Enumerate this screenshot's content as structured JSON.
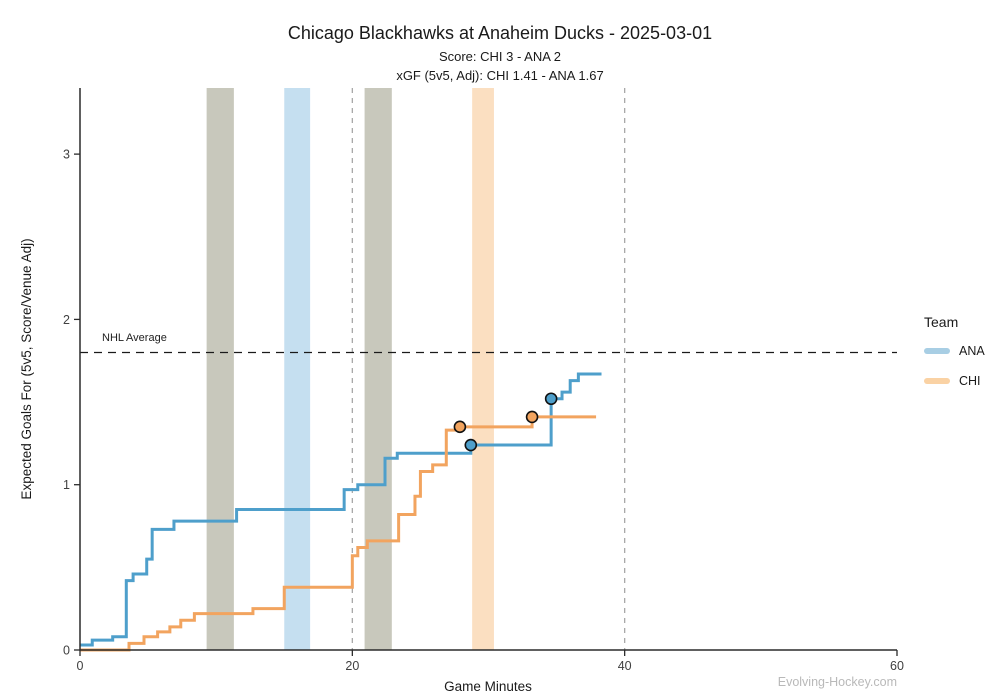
{
  "legend": {
    "title": "Team",
    "items": [
      {
        "label": "ANA",
        "swatch_color": "#A8CEE4"
      },
      {
        "label": "CHI",
        "swatch_color": "#FAD2A4"
      }
    ]
  },
  "watermark": "Evolving-Hockey.com",
  "chart_data": {
    "type": "line",
    "step": true,
    "title": "Chicago Blackhawks at Anaheim Ducks - 2025-03-01",
    "subtitle_score": "Score: CHI 3 - ANA 2",
    "subtitle_xgf": "xGF (5v5, Adj): CHI 1.41 - ANA 1.67",
    "xlabel": "Game Minutes",
    "ylabel": "Expected Goals For (5v5, Score/Venue Adj)",
    "xlim": [
      0,
      60
    ],
    "ylim": [
      0,
      3.4
    ],
    "x_ticks": [
      0,
      20,
      40,
      60
    ],
    "y_ticks": [
      0,
      1,
      2,
      3
    ],
    "grid": false,
    "legend_position": "right",
    "nhl_average": {
      "label": "NHL Average",
      "value": 1.8
    },
    "period_lines": [
      20,
      40
    ],
    "bands": [
      {
        "from": 9.3,
        "to": 11.3,
        "color": "#C8C8BC"
      },
      {
        "from": 15.0,
        "to": 16.9,
        "color": "#C5DFF0"
      },
      {
        "from": 20.9,
        "to": 22.9,
        "color": "#C8C8BC"
      },
      {
        "from": 28.8,
        "to": 30.4,
        "color": "#FBDFC1"
      }
    ],
    "series": [
      {
        "name": "ANA",
        "color": "#4E9FCB",
        "points": [
          [
            0,
            0.03
          ],
          [
            0.9,
            0.06
          ],
          [
            2.4,
            0.08
          ],
          [
            3.4,
            0.42
          ],
          [
            3.9,
            0.46
          ],
          [
            4.9,
            0.55
          ],
          [
            5.3,
            0.73
          ],
          [
            6.9,
            0.78
          ],
          [
            11.5,
            0.85
          ],
          [
            19.4,
            0.97
          ],
          [
            20.4,
            1.0
          ],
          [
            22.4,
            1.16
          ],
          [
            23.3,
            1.19
          ],
          [
            28.7,
            1.24
          ],
          [
            34.6,
            1.52
          ],
          [
            35.4,
            1.56
          ],
          [
            36.0,
            1.63
          ],
          [
            36.6,
            1.67
          ],
          [
            38.3,
            1.67
          ]
        ]
      },
      {
        "name": "CHI",
        "color": "#F2A45F",
        "points": [
          [
            0,
            0.0
          ],
          [
            3.6,
            0.04
          ],
          [
            4.7,
            0.08
          ],
          [
            5.7,
            0.11
          ],
          [
            6.6,
            0.14
          ],
          [
            7.4,
            0.18
          ],
          [
            8.4,
            0.22
          ],
          [
            12.7,
            0.25
          ],
          [
            15.0,
            0.38
          ],
          [
            20.0,
            0.57
          ],
          [
            20.4,
            0.62
          ],
          [
            21.1,
            0.66
          ],
          [
            23.4,
            0.82
          ],
          [
            24.6,
            0.93
          ],
          [
            25.0,
            1.08
          ],
          [
            25.9,
            1.12
          ],
          [
            26.9,
            1.33
          ],
          [
            27.9,
            1.35
          ],
          [
            33.2,
            1.41
          ],
          [
            37.9,
            1.41
          ]
        ]
      }
    ],
    "goals": [
      {
        "team": "CHI",
        "x": 27.9,
        "y": 1.35
      },
      {
        "team": "ANA",
        "x": 28.7,
        "y": 1.24
      },
      {
        "team": "CHI",
        "x": 33.2,
        "y": 1.41
      },
      {
        "team": "ANA",
        "x": 34.6,
        "y": 1.52
      }
    ]
  }
}
